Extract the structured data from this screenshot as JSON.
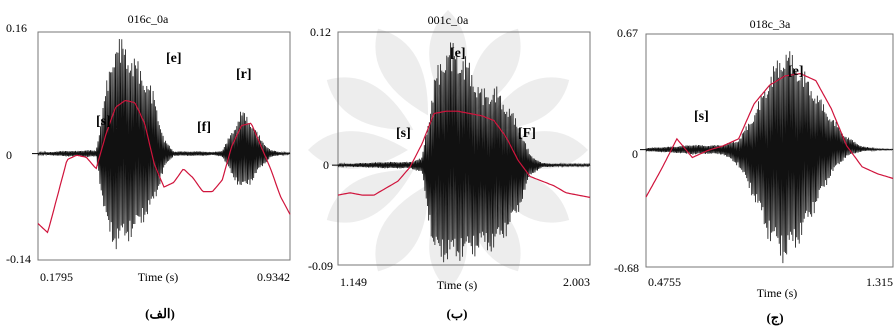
{
  "figure_labels": [
    "(الف)",
    "(ب)",
    "(ج)"
  ],
  "colors": {
    "waveform": "#111111",
    "pitch": "#d0143c",
    "frame": "#777777",
    "watermark": "#d7d7d7"
  },
  "chart_data": [
    {
      "type": "line",
      "title": "016c_0a",
      "xlabel": "Time (s)",
      "xlim": [
        0.1795,
        0.9342
      ],
      "ylim": [
        -0.14,
        0.16
      ],
      "x_tick_labels": [
        "0.1795",
        "0.9342"
      ],
      "y_tick_labels": [
        "0.16",
        "0",
        "-0.14"
      ],
      "segment_labels": [
        "[s]",
        "[e]",
        "[f]",
        "[r]"
      ],
      "series": [
        {
          "values": [
            0.0015,
            0.002,
            0.003,
            0.004,
            0.0035,
            0.005,
            0.004,
            0.09,
            0.16,
            0.15,
            0.13,
            0.11,
            0.08,
            0.02,
            0.003,
            0.003,
            0.003,
            0.003,
            0.002,
            0.004,
            0.03,
            0.06,
            0.045,
            0.02,
            0.005,
            0.002,
            0.001
          ]
        },
        {
          "values": [
            -0.0015,
            -0.002,
            -0.003,
            -0.004,
            -0.0035,
            -0.005,
            -0.004,
            -0.1,
            -0.13,
            -0.12,
            -0.11,
            -0.09,
            -0.07,
            -0.02,
            -0.003,
            -0.003,
            -0.003,
            -0.003,
            -0.002,
            -0.004,
            -0.03,
            -0.05,
            -0.04,
            -0.02,
            -0.005,
            -0.002,
            -0.001
          ]
        },
        {
          "values": [
            0.16,
            0.12,
            0.28,
            0.44,
            0.46,
            0.45,
            0.4,
            0.55,
            0.67,
            0.7,
            0.69,
            0.6,
            0.42,
            0.32,
            0.34,
            0.4,
            0.36,
            0.3,
            0.3,
            0.35,
            0.5,
            0.59,
            0.6,
            0.5,
            0.4,
            0.28,
            0.2
          ]
        }
      ]
    },
    {
      "type": "line",
      "title": "001c_0a",
      "xlabel": "Time (s)",
      "xlim": [
        1.149,
        2.003
      ],
      "ylim": [
        -0.09,
        0.12
      ],
      "x_tick_labels": [
        "1.149",
        "2.003"
      ],
      "y_tick_labels": [
        "0.12",
        "0",
        "-0.09"
      ],
      "segment_labels": [
        "[s]",
        "[e]",
        "[F]"
      ],
      "series": [
        {
          "values": [
            0.001,
            0.0015,
            0.002,
            0.0025,
            0.003,
            0.003,
            0.003,
            0.007,
            0.08,
            0.115,
            0.11,
            0.095,
            0.07,
            0.075,
            0.06,
            0.04,
            0.01,
            0.002,
            0.0015,
            0.001,
            0.001,
            0.001
          ]
        },
        {
          "values": [
            -0.001,
            -0.0015,
            -0.002,
            -0.0025,
            -0.003,
            -0.003,
            -0.003,
            -0.007,
            -0.085,
            -0.09,
            -0.088,
            -0.085,
            -0.08,
            -0.08,
            -0.065,
            -0.045,
            -0.01,
            -0.002,
            -0.0015,
            -0.001,
            -0.001,
            -0.001
          ]
        },
        {
          "values": [
            0.3,
            0.31,
            0.3,
            0.3,
            0.33,
            0.36,
            0.42,
            0.52,
            0.65,
            0.66,
            0.66,
            0.65,
            0.64,
            0.62,
            0.55,
            0.45,
            0.38,
            0.36,
            0.34,
            0.31,
            0.3,
            0.29
          ]
        }
      ]
    },
    {
      "type": "line",
      "title": "018c_3a",
      "xlabel": "Time (s)",
      "xlim": [
        0.4755,
        1.315
      ],
      "ylim": [
        -0.68,
        0.67
      ],
      "x_tick_labels": [
        "0.4755",
        "1.315"
      ],
      "y_tick_labels": [
        "0.67",
        "0",
        "-0.68"
      ],
      "segment_labels": [
        "[s]",
        "[e]"
      ],
      "series": [
        {
          "values": [
            0.01,
            0.015,
            0.02,
            0.03,
            0.025,
            0.03,
            0.06,
            0.22,
            0.45,
            0.62,
            0.5,
            0.35,
            0.2,
            0.08,
            0.02,
            0.005,
            0.003
          ]
        },
        {
          "values": [
            -0.01,
            -0.015,
            -0.02,
            -0.03,
            -0.025,
            -0.03,
            -0.1,
            -0.3,
            -0.55,
            -0.68,
            -0.55,
            -0.35,
            -0.15,
            -0.04,
            -0.01,
            -0.003,
            -0.002
          ]
        },
        {
          "values": [
            0.3,
            0.42,
            0.55,
            0.47,
            0.5,
            0.52,
            0.55,
            0.7,
            0.78,
            0.82,
            0.83,
            0.8,
            0.68,
            0.52,
            0.43,
            0.4,
            0.38
          ]
        }
      ]
    }
  ]
}
